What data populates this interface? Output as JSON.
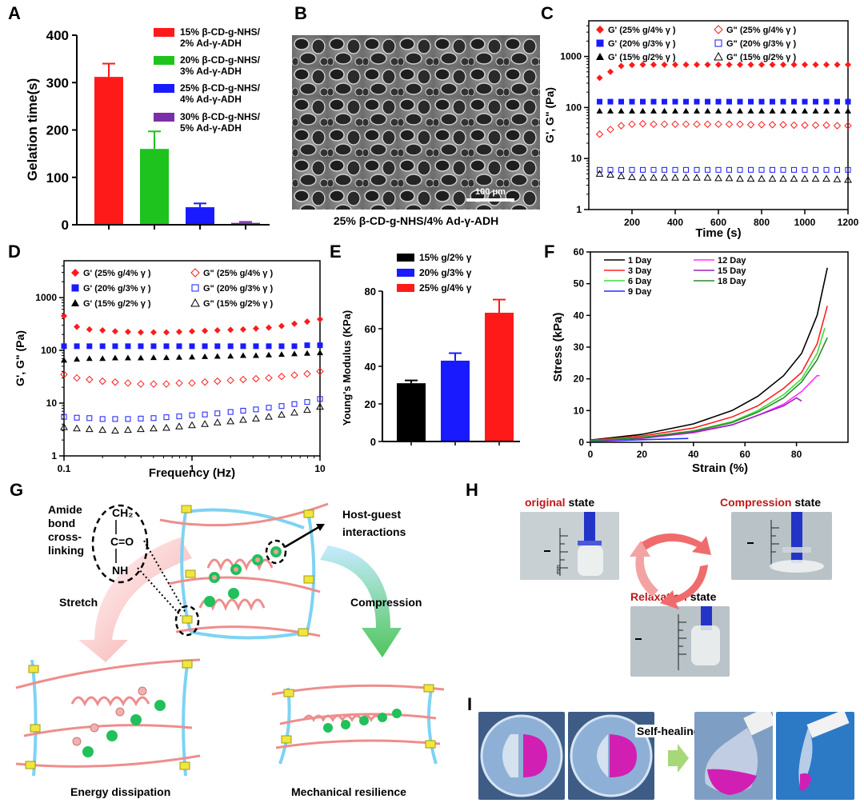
{
  "panels": {
    "a": "A",
    "b": "B",
    "c": "C",
    "d": "D",
    "e": "E",
    "f": "F",
    "g": "G",
    "h": "H",
    "i": "I"
  },
  "colors": {
    "red": "#ff1a1a",
    "green": "#1ec31e",
    "blue": "#1a1aff",
    "purple": "#7a2fa8",
    "black": "#000000"
  },
  "panelA": {
    "ylabel": "Gelation time(s)",
    "yticks": [
      "0",
      "100",
      "200",
      "300",
      "400"
    ],
    "legend_l1": [
      "15% β-CD-g-NHS/",
      "20% β-CD-g-NHS/",
      "25% β-CD-g-NHS/",
      "30% β-CD-g-NHS/"
    ],
    "legend_l2": [
      "2% Ad-γ-ADH",
      "3% Ad-γ-ADH",
      "4% Ad-γ-ADH",
      "5% Ad-γ-ADH"
    ]
  },
  "panelB": {
    "scale": "100 μm",
    "caption": "25% β-CD-g-NHS/4% Ad-γ-ADH"
  },
  "panelC": {
    "ylabel": "G', G\" (Pa)",
    "xlabel": "Time (s)",
    "xticks": [
      "200",
      "400",
      "600",
      "800",
      "1000",
      "1200"
    ],
    "yticks": [
      "1",
      "10",
      "100",
      "1000"
    ],
    "legend": [
      "G' (25% g/4% γ )",
      "G' (20% g/3% γ )",
      "G' (15% g/2% γ )",
      "G\" (25% g/4% γ )",
      "G\" (20% g/3% γ )",
      "G\" (15% g/2% γ )"
    ]
  },
  "panelD": {
    "ylabel": "G', G\" (Pa)",
    "xlabel": "Frequency (Hz)",
    "xticks": [
      "0.1",
      "1",
      "10"
    ],
    "yticks": [
      "1",
      "10",
      "100",
      "1000"
    ],
    "legend": [
      "G' (25% g/4% γ )",
      "G' (20% g/3% γ )",
      "G' (15% g/2% γ )",
      "G\" (25% g/4% γ )",
      "G\" (20% g/3% γ )",
      "G\" (15% g/2% γ )"
    ]
  },
  "panelE": {
    "ylabel": "Young's Modulus (KPa)",
    "yticks": [
      "0",
      "20",
      "40",
      "60",
      "80"
    ],
    "legend": [
      "15% g/2% γ",
      "20% g/3% γ",
      "25% g/4% γ"
    ]
  },
  "panelF": {
    "ylabel": "Stress (kPa)",
    "xlabel": "Strain (%)",
    "xticks": [
      "0",
      "20",
      "40",
      "60",
      "80"
    ],
    "yticks": [
      "0",
      "10",
      "20",
      "30",
      "40",
      "50",
      "60"
    ],
    "legend": [
      "1 Day",
      "3 Day",
      "6 Day",
      "9 Day",
      "12 Day",
      "15 Day",
      "18 Day"
    ]
  },
  "panelG": {
    "amide": [
      "Amide",
      "bond",
      "cross-",
      "linking"
    ],
    "chem": [
      "CH₂",
      "C=O",
      "NH"
    ],
    "hostguest": [
      "Host-guest",
      "interactions"
    ],
    "stretch": "Stretch",
    "compression": "Compression",
    "energy": "Energy dissipation",
    "resilience": "Mechanical resilience"
  },
  "panelH": {
    "original_key": "original",
    "original_rest": " state",
    "compression_key": "Compression",
    "compression_rest": " state",
    "relaxation_key": "Relaxation",
    "relaxation_rest": " state",
    "mm": "mm"
  },
  "panelI": {
    "selfheal": "Self-healing"
  },
  "chart_data": [
    {
      "type": "bar",
      "id": "A",
      "title": "",
      "ylabel": "Gelation time(s)",
      "ylim": [
        0,
        400
      ],
      "categories": [
        "15% β-CD-g-NHS/2% Ad-γ-ADH",
        "20% β-CD-g-NHS/3% Ad-γ-ADH",
        "25% β-CD-g-NHS/4% Ad-γ-ADH",
        "30% β-CD-g-NHS/5% Ad-γ-ADH"
      ],
      "values": [
        312,
        160,
        37,
        4
      ],
      "errors": [
        28,
        37,
        8,
        2
      ]
    },
    {
      "type": "scatter",
      "id": "C",
      "xlabel": "Time (s)",
      "ylabel": "G', G\" (Pa)",
      "xlim": [
        0,
        1200
      ],
      "ylim": [
        1,
        5000
      ],
      "yscale": "log",
      "x": [
        50,
        100,
        150,
        200,
        250,
        300,
        350,
        400,
        450,
        500,
        550,
        600,
        650,
        700,
        750,
        800,
        850,
        900,
        950,
        1000,
        1050,
        1100,
        1150,
        1200
      ],
      "series": [
        {
          "name": "G' (25% g/4% γ )",
          "values": [
            380,
            500,
            650,
            680,
            690,
            690,
            690,
            690,
            690,
            690,
            690,
            690,
            690,
            690,
            690,
            690,
            690,
            690,
            690,
            690,
            690,
            690,
            690,
            690
          ]
        },
        {
          "name": "G' (20% g/3% γ )",
          "values": [
            130,
            130,
            130,
            130,
            130,
            130,
            130,
            130,
            130,
            130,
            130,
            130,
            130,
            130,
            130,
            130,
            130,
            130,
            130,
            130,
            130,
            130,
            130,
            130
          ]
        },
        {
          "name": "G' (15% g/2% γ )",
          "values": [
            85,
            85,
            85,
            85,
            85,
            85,
            85,
            85,
            85,
            85,
            85,
            85,
            85,
            85,
            85,
            85,
            85,
            85,
            85,
            85,
            85,
            85,
            85,
            85
          ]
        },
        {
          "name": "G\" (25% g/4% γ )",
          "values": [
            30,
            37,
            44,
            47,
            48,
            47,
            47,
            47,
            47,
            47,
            47,
            47,
            47,
            47,
            46,
            46,
            46,
            46,
            45,
            45,
            45,
            45,
            44,
            44
          ]
        },
        {
          "name": "G\" (20% g/3% γ )",
          "values": [
            6,
            6,
            6,
            6,
            6,
            6,
            6,
            6,
            6,
            6,
            6,
            6,
            6,
            6,
            6,
            6,
            6,
            6,
            6,
            6,
            6,
            6,
            6,
            6
          ]
        },
        {
          "name": "G\" (15% g/2% γ )",
          "values": [
            5,
            4.8,
            4.5,
            4.3,
            4.2,
            4.2,
            4.2,
            4.2,
            4.2,
            4.2,
            4.2,
            4.1,
            4.1,
            4.0,
            4.0,
            4.0,
            4.0,
            4.0,
            4.0,
            4.0,
            4.0,
            4.0,
            3.9,
            3.8
          ]
        }
      ]
    },
    {
      "type": "scatter",
      "id": "D",
      "xlabel": "Frequency (Hz)",
      "ylabel": "G', G\" (Pa)",
      "xlim": [
        0.1,
        10
      ],
      "xscale": "log",
      "ylim": [
        1,
        5000
      ],
      "yscale": "log",
      "x": [
        0.1,
        0.126,
        0.158,
        0.2,
        0.251,
        0.316,
        0.398,
        0.501,
        0.631,
        0.794,
        1,
        1.26,
        1.58,
        2,
        2.51,
        3.16,
        3.98,
        5.01,
        6.31,
        7.94,
        10
      ],
      "series": [
        {
          "name": "G' (25% g/4% γ )",
          "values": [
            450,
            280,
            250,
            240,
            230,
            225,
            220,
            220,
            220,
            225,
            230,
            235,
            240,
            245,
            250,
            260,
            270,
            290,
            320,
            350,
            390
          ]
        },
        {
          "name": "G' (20% g/3% γ )",
          "values": [
            120,
            120,
            120,
            120,
            120,
            120,
            120,
            120,
            120,
            120,
            120,
            120,
            120,
            120,
            120,
            120,
            120,
            120,
            120,
            125,
            125
          ]
        },
        {
          "name": "G' (15% g/2% γ )",
          "values": [
            65,
            68,
            70,
            70,
            72,
            72,
            72,
            73,
            73,
            74,
            75,
            76,
            77,
            78,
            80,
            80,
            82,
            84,
            86,
            88,
            90
          ]
        },
        {
          "name": "G\" (25% g/4% γ )",
          "values": [
            35,
            30,
            28,
            26,
            25,
            24,
            23,
            23,
            23,
            24,
            24,
            25,
            26,
            27,
            28,
            29,
            30,
            32,
            34,
            36,
            40
          ]
        },
        {
          "name": "G\" (20% g/3% γ )",
          "values": [
            5.5,
            5.3,
            5.2,
            5.0,
            5.0,
            5.0,
            5.1,
            5.2,
            5.4,
            5.6,
            5.9,
            6.1,
            6.4,
            6.8,
            7.2,
            7.6,
            8.2,
            8.8,
            9.6,
            10.5,
            12
          ]
        },
        {
          "name": "G\" (15% g/2% γ )",
          "values": [
            3.5,
            3.3,
            3.2,
            3.1,
            3.0,
            3.1,
            3.2,
            3.3,
            3.4,
            3.6,
            3.8,
            4.0,
            4.3,
            4.5,
            4.8,
            5.1,
            5.5,
            6.0,
            6.6,
            7.4,
            8.5
          ]
        }
      ]
    },
    {
      "type": "bar",
      "id": "E",
      "ylabel": "Young's Modulus (KPa)",
      "ylim": [
        0,
        80
      ],
      "categories": [
        "15% g/2% γ",
        "20% g/3% γ",
        "25% g/4% γ"
      ],
      "values": [
        31,
        43,
        68.5
      ],
      "errors": [
        1.5,
        4,
        7
      ]
    },
    {
      "type": "line",
      "id": "F",
      "xlabel": "Strain (%)",
      "ylabel": "Stress (kPa)",
      "xlim": [
        0,
        100
      ],
      "ylim": [
        0,
        60
      ],
      "series": [
        {
          "name": "1 Day",
          "x": [
            0,
            20,
            40,
            55,
            65,
            75,
            82,
            88,
            92
          ],
          "values": [
            0.7,
            2.5,
            5.8,
            10,
            14.5,
            21,
            28,
            40,
            55
          ]
        },
        {
          "name": "3 Day",
          "x": [
            0,
            20,
            40,
            55,
            65,
            75,
            82,
            88,
            92
          ],
          "values": [
            0.6,
            2,
            4.5,
            8,
            11.5,
            17,
            22,
            31,
            43
          ]
        },
        {
          "name": "6 Day",
          "x": [
            0,
            20,
            40,
            55,
            65,
            75,
            82,
            88,
            91
          ],
          "values": [
            0.5,
            1.6,
            3.6,
            6.5,
            10,
            15,
            20,
            28,
            36
          ]
        },
        {
          "name": "9 Day",
          "x": [
            0,
            20,
            38
          ],
          "values": [
            0.3,
            0.8,
            1.2
          ]
        },
        {
          "name": "12 Day",
          "x": [
            0,
            20,
            40,
            55,
            65,
            75,
            82,
            88,
            89
          ],
          "values": [
            0.4,
            1.2,
            3,
            5.5,
            8.5,
            12,
            16,
            21,
            21
          ]
        },
        {
          "name": "15 Day",
          "x": [
            0,
            20,
            40,
            55,
            65,
            75,
            80,
            82
          ],
          "values": [
            0.4,
            1.3,
            3.2,
            5.5,
            8.5,
            11.5,
            14,
            13
          ]
        },
        {
          "name": "18 Day",
          "x": [
            0,
            20,
            40,
            55,
            65,
            75,
            82,
            88,
            92
          ],
          "values": [
            0.5,
            1.5,
            3.5,
            6.2,
            9.5,
            14,
            19,
            26,
            33
          ]
        }
      ]
    }
  ]
}
